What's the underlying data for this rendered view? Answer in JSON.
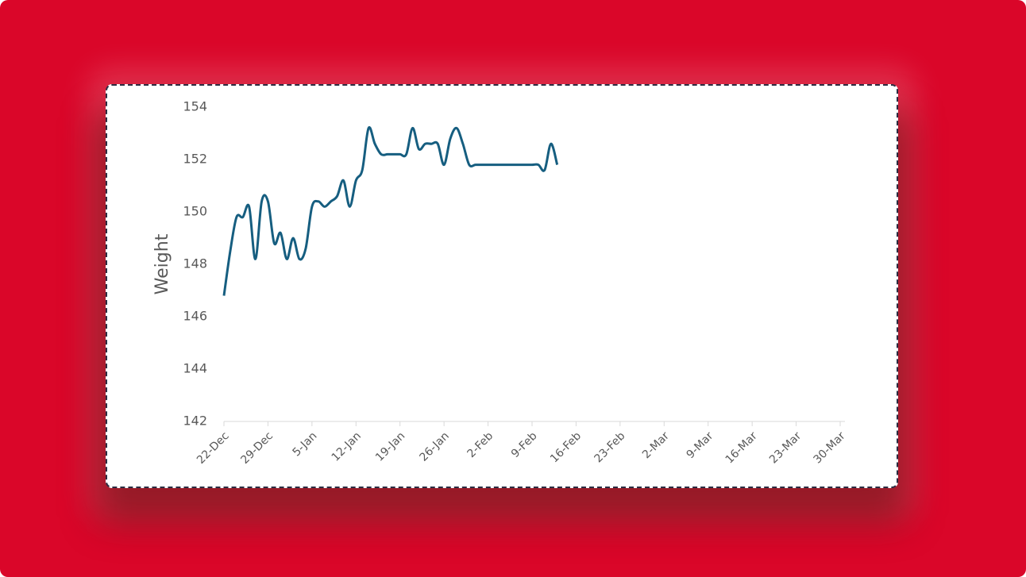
{
  "chart_data": {
    "type": "line",
    "y_label": "Weight",
    "x": [
      "22-Dec",
      "23-Dec",
      "24-Dec",
      "25-Dec",
      "26-Dec",
      "27-Dec",
      "28-Dec",
      "29-Dec",
      "30-Dec",
      "31-Dec",
      "1-Jan",
      "2-Jan",
      "3-Jan",
      "4-Jan",
      "5-Jan",
      "6-Jan",
      "7-Jan",
      "8-Jan",
      "9-Jan",
      "10-Jan",
      "11-Jan",
      "12-Jan",
      "13-Jan",
      "14-Jan",
      "15-Jan",
      "16-Jan",
      "17-Jan",
      "18-Jan",
      "19-Jan",
      "20-Jan",
      "21-Jan",
      "22-Jan",
      "23-Jan",
      "24-Jan",
      "25-Jan",
      "26-Jan",
      "27-Jan",
      "28-Jan",
      "29-Jan",
      "30-Jan",
      "31-Jan",
      "1-Feb",
      "2-Feb",
      "3-Feb",
      "4-Feb",
      "5-Feb",
      "6-Feb",
      "7-Feb",
      "8-Feb",
      "9-Feb",
      "10-Feb",
      "11-Feb",
      "12-Feb",
      "13-Feb"
    ],
    "series": [
      {
        "name": "Weight",
        "color": "#165e80",
        "values": [
          146.8,
          148.5,
          149.8,
          149.8,
          150.2,
          148.2,
          150.4,
          150.4,
          148.8,
          149.2,
          148.2,
          149.0,
          148.2,
          148.6,
          150.2,
          150.4,
          150.2,
          150.4,
          150.6,
          151.2,
          150.2,
          151.2,
          151.6,
          153.2,
          152.6,
          152.2,
          152.2,
          152.2,
          152.2,
          152.2,
          153.2,
          152.4,
          152.6,
          152.6,
          152.6,
          151.8,
          152.8,
          153.2,
          152.6,
          151.8,
          151.8,
          151.8,
          151.8,
          151.8,
          151.8,
          151.8,
          151.8,
          151.8,
          151.8,
          151.8,
          151.8,
          151.6,
          152.6,
          151.8
        ]
      }
    ],
    "xlim": [
      "22-Dec",
      "30-Mar"
    ],
    "xticks": [
      "22-Dec",
      "29-Dec",
      "5-Jan",
      "12-Jan",
      "19-Jan",
      "26-Jan",
      "2-Feb",
      "9-Feb",
      "16-Feb",
      "23-Feb",
      "2-Mar",
      "9-Mar",
      "16-Mar",
      "23-Mar",
      "30-Mar"
    ],
    "ylim": [
      142,
      154
    ],
    "yticks": [
      142,
      144,
      146,
      148,
      150,
      152,
      154
    ],
    "smooth": true
  }
}
